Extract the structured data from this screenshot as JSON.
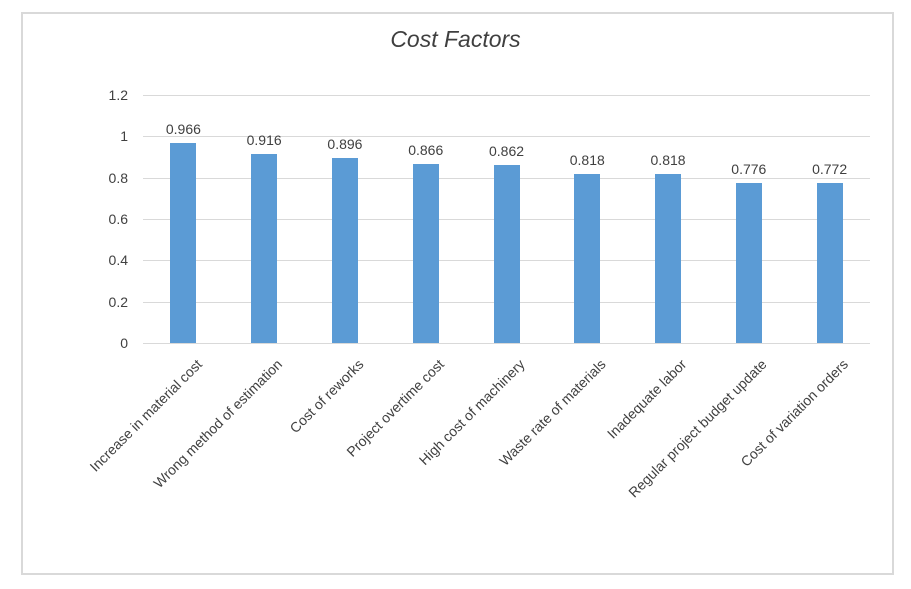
{
  "chart_data": {
    "type": "bar",
    "title": "Cost Factors",
    "categories": [
      "Increase in material cost",
      "Wrong method of estimation",
      "Cost of reworks",
      "Project overtime cost",
      "High cost of machinery",
      "Waste rate of materials",
      "Inadequate labor",
      "Regular project budget update",
      "Cost of variation orders"
    ],
    "values": [
      0.966,
      0.916,
      0.896,
      0.866,
      0.862,
      0.818,
      0.818,
      0.776,
      0.772
    ],
    "data_labels": [
      "0.966",
      "0.916",
      "0.896",
      "0.866",
      "0.862",
      "0.818",
      "0.818",
      "0.776",
      "0.772"
    ],
    "xlabel": "",
    "ylabel": "",
    "ylim": [
      0,
      1.2
    ],
    "yticks": [
      {
        "value": 0,
        "label": "0"
      },
      {
        "value": 0.2,
        "label": "0.2"
      },
      {
        "value": 0.4,
        "label": "0.4"
      },
      {
        "value": 0.6,
        "label": "0.6"
      },
      {
        "value": 0.8,
        "label": "0.8"
      },
      {
        "value": 1,
        "label": "1"
      },
      {
        "value": 1.2,
        "label": "1.2"
      }
    ],
    "grid": "horizontal",
    "legend": "none",
    "colors": {
      "bar": "#5b9bd5",
      "gridline": "#d9d9d9",
      "axis_line": "#d9d9d9",
      "text": "#404040",
      "title_text": "#3f3f3f",
      "chart_border": "#d9d9d9",
      "background": "#ffffff"
    }
  }
}
